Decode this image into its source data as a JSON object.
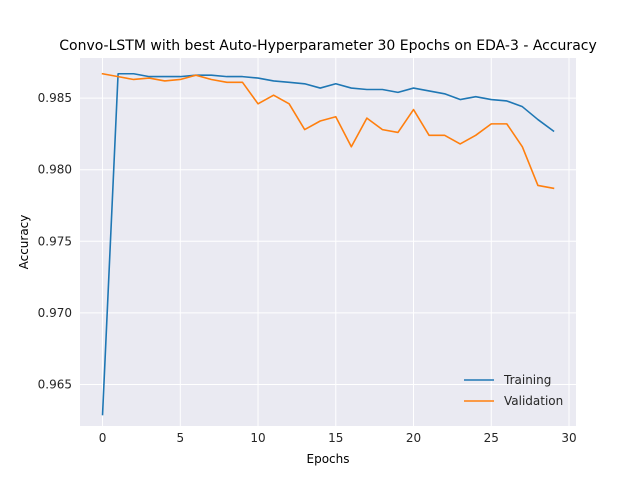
{
  "chart_data": {
    "type": "line",
    "title": "Convo-LSTM with best Auto-Hyperparameter 30 Epochs on EDA-3 - Accuracy",
    "xlabel": "Epochs",
    "ylabel": "Accuracy",
    "xlim": [
      -1.45,
      30.45
    ],
    "ylim": [
      0.9621,
      0.9878
    ],
    "xticks": [
      0,
      5,
      10,
      15,
      20,
      25,
      30
    ],
    "xtick_labels": [
      "0",
      "5",
      "10",
      "15",
      "20",
      "25",
      "30"
    ],
    "yticks": [
      0.965,
      0.97,
      0.975,
      0.98,
      0.985
    ],
    "ytick_labels": [
      "0.965",
      "0.970",
      "0.975",
      "0.980",
      "0.985"
    ],
    "grid": true,
    "legend_position": "lower right",
    "x": [
      0,
      1,
      2,
      3,
      4,
      5,
      6,
      7,
      8,
      9,
      10,
      11,
      12,
      13,
      14,
      15,
      16,
      17,
      18,
      19,
      20,
      21,
      22,
      23,
      24,
      25,
      26,
      27,
      28,
      29
    ],
    "series": [
      {
        "name": "Training",
        "color": "#1f77b4",
        "values": [
          0.9629,
          0.9867,
          0.9867,
          0.9865,
          0.9865,
          0.9865,
          0.9866,
          0.9866,
          0.9865,
          0.9865,
          0.9864,
          0.9862,
          0.9861,
          0.986,
          0.9857,
          0.986,
          0.9857,
          0.9856,
          0.9856,
          0.9854,
          0.9857,
          0.9855,
          0.9853,
          0.9849,
          0.9851,
          0.9849,
          0.9848,
          0.9844,
          0.9835,
          0.9827
        ]
      },
      {
        "name": "Validation",
        "color": "#ff7f0e",
        "values": [
          0.9867,
          0.9865,
          0.9863,
          0.9864,
          0.9862,
          0.9863,
          0.9866,
          0.9863,
          0.9861,
          0.9861,
          0.9846,
          0.9852,
          0.9846,
          0.9828,
          0.9834,
          0.9837,
          0.9816,
          0.9836,
          0.9828,
          0.9826,
          0.9842,
          0.9824,
          0.9824,
          0.9818,
          0.9824,
          0.9832,
          0.9832,
          0.9816,
          0.9789,
          0.9787
        ]
      }
    ]
  }
}
